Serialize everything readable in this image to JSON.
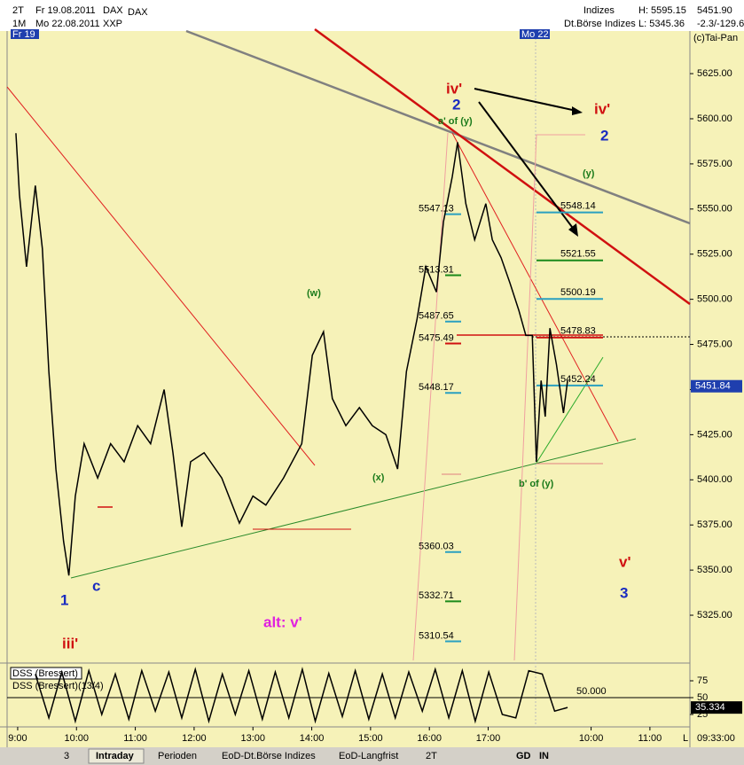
{
  "header": {
    "period": "2T",
    "from": "Fr 19.08.2011",
    "symbol": "DAX",
    "name": "DAX",
    "range": "1M",
    "to": "Mo 22.08.2011",
    "exchange": "XXP",
    "group": "Indizes",
    "market": "Dt.Börse Indizes",
    "high": "H: 5595.15",
    "low": "L: 5345.36",
    "last": "5451.90",
    "change": "-2.3/-129.6",
    "copyright": "(c)Tai-Pan",
    "day1": "Fr 19",
    "day2": "Mo 22"
  },
  "chart_data": [
    {
      "type": "line",
      "color": "#000000",
      "x": [
        8.97,
        9.03,
        9.15,
        9.3,
        9.42,
        9.53,
        9.65,
        9.78,
        9.87,
        9.98,
        10.13,
        10.36,
        10.58,
        10.81,
        11.04,
        11.26,
        11.49,
        11.64,
        11.79,
        11.94,
        12.17,
        12.47,
        12.77,
        13.0,
        13.22,
        13.52,
        13.83,
        14.01,
        14.2,
        14.35,
        14.58,
        14.81,
        15.03,
        15.26,
        15.46,
        15.61,
        15.79,
        15.94,
        16.12,
        16.24,
        16.39,
        16.48,
        16.62,
        16.77,
        16.96,
        17.07,
        17.22,
        17.37,
        17.52,
        17.64,
        17.75,
        17.82,
        17.9,
        17.97,
        18.05,
        18.16,
        18.28,
        18.35
      ],
      "values": [
        5592,
        5558,
        5518,
        5563,
        5528,
        5460,
        5406,
        5366,
        5347,
        5391,
        5420,
        5401,
        5420,
        5410,
        5430,
        5420,
        5450,
        5415,
        5374,
        5410,
        5415,
        5401,
        5376,
        5391,
        5386,
        5401,
        5420,
        5469,
        5482,
        5445,
        5430,
        5440,
        5430,
        5425,
        5406,
        5460,
        5489,
        5518,
        5504,
        5543,
        5568,
        5587,
        5553,
        5533,
        5553,
        5533,
        5523,
        5509,
        5494,
        5480,
        5480,
        5410,
        5455,
        5435,
        5484,
        5464,
        5437,
        5455
      ],
      "xlim": [
        8.82,
        20.43
      ],
      "xticks": [
        {
          "value": 9,
          "label": "9:00"
        },
        {
          "value": 10,
          "label": "10:00"
        },
        {
          "value": 11,
          "label": "11:00"
        },
        {
          "value": 12,
          "label": "12:00"
        },
        {
          "value": 13,
          "label": "13:00"
        },
        {
          "value": 14,
          "label": "14:00"
        },
        {
          "value": 15,
          "label": "15:00"
        },
        {
          "value": 16,
          "label": "16:00"
        },
        {
          "value": 17,
          "label": "17:00"
        },
        {
          "value": 18.75,
          "label": "10:00"
        },
        {
          "value": 19.75,
          "label": "11:00"
        }
      ],
      "ylim": [
        5298.5,
        5648.6
      ],
      "yticks": [
        {
          "value": 5325,
          "label": "5325.00"
        },
        {
          "value": 5350,
          "label": "5350.00"
        },
        {
          "value": 5375,
          "label": "5375.00"
        },
        {
          "value": 5400,
          "label": "5400.00"
        },
        {
          "value": 5425,
          "label": "5425.00"
        },
        {
          "value": 5450,
          "label": "5450.00"
        },
        {
          "value": 5475,
          "label": "5475.00"
        },
        {
          "value": 5500,
          "label": "5500.00"
        },
        {
          "value": 5525,
          "label": "5525.00"
        },
        {
          "value": 5550,
          "label": "5550.00"
        },
        {
          "value": 5575,
          "label": "5575.00"
        },
        {
          "value": 5600,
          "label": "5600.00"
        },
        {
          "value": 5625,
          "label": "5625.00"
        }
      ],
      "levels_left": [
        5547.13,
        5513.31,
        5487.65,
        5475.49,
        5448.17,
        5360.03,
        5332.71,
        5310.54
      ],
      "levels_right": [
        5548.14,
        5521.55,
        5500.19,
        5478.83,
        5452.24
      ],
      "last_value": 5451.84
    },
    {
      "type": "line",
      "color": "#000000",
      "legend": [
        "DSS (Bressert)",
        "DSS (Bressert)(13/4)"
      ],
      "x": [
        9.3,
        9.53,
        9.75,
        9.98,
        10.21,
        10.43,
        10.66,
        10.89,
        11.11,
        11.34,
        11.57,
        11.79,
        12.02,
        12.25,
        12.48,
        12.7,
        12.93,
        13.16,
        13.38,
        13.61,
        13.84,
        14.06,
        14.29,
        14.52,
        14.74,
        14.97,
        15.2,
        15.42,
        15.65,
        15.88,
        16.1,
        16.33,
        16.56,
        16.78,
        17.01,
        17.24,
        17.47,
        17.69,
        17.92,
        18.13,
        18.35
      ],
      "values": [
        85,
        20,
        88,
        15,
        90,
        25,
        85,
        18,
        90,
        30,
        88,
        20,
        92,
        15,
        85,
        25,
        90,
        18,
        88,
        20,
        92,
        15,
        86,
        22,
        90,
        18,
        85,
        20,
        88,
        30,
        92,
        20,
        90,
        15,
        88,
        25,
        20,
        90,
        85,
        30,
        35.334
      ],
      "ylim": [
        9.2,
        98.7
      ],
      "yticks": [
        25,
        50,
        75
      ],
      "reference": {
        "value": 50,
        "label": "50.000"
      },
      "last_value": 35.334
    }
  ],
  "wave_labels": [
    "iv'",
    "2",
    "a' of (y)",
    "iv'",
    "2",
    "(y)",
    "(w)",
    "(x)",
    "b' of (y)",
    "1",
    "c",
    "iii'",
    "alt: v'",
    "v'",
    "3"
  ],
  "footer": {
    "session_end": "L",
    "time": "09:33:00",
    "count": "3"
  },
  "tabs": [
    "Intraday",
    "Perioden",
    "EoD-Dt.Börse Indizes",
    "EoD-Langfrist"
  ],
  "toolbar": [
    "2T",
    "GD",
    "IN"
  ]
}
